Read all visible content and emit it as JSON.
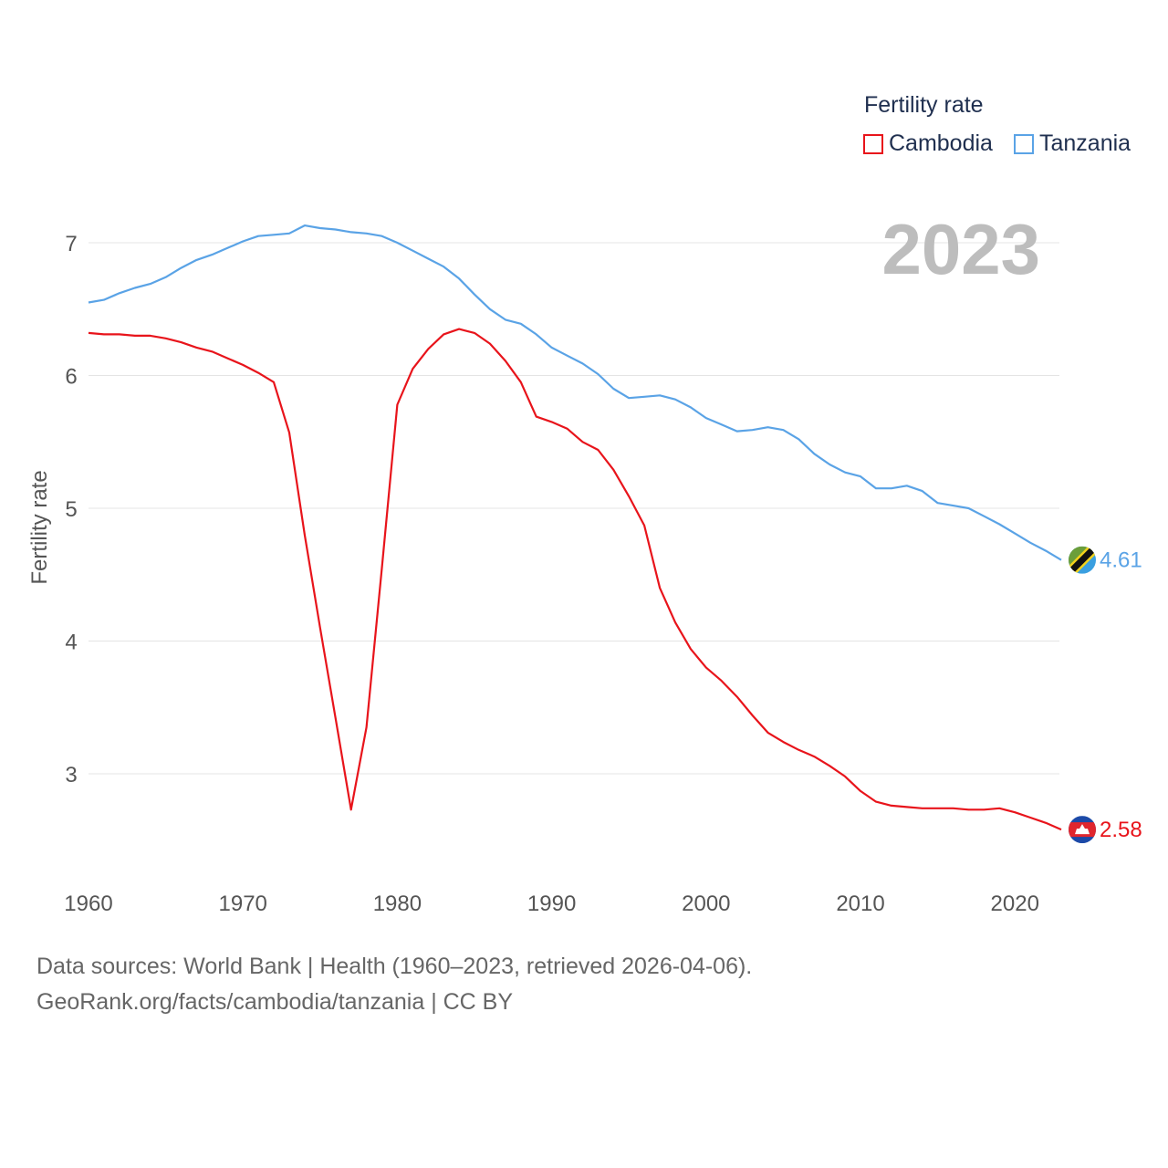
{
  "legend": {
    "title": "Fertility rate",
    "items": [
      {
        "label": "Cambodia",
        "color": "#e8141b"
      },
      {
        "label": "Tanzania",
        "color": "#5aa3e6"
      }
    ]
  },
  "footer": {
    "line1": "Data sources: World Bank | Health (1960–2023, retrieved 2026-04-06).",
    "line2": "GeoRank.org/facts/cambodia/tanzania | CC BY"
  },
  "chart_data": {
    "type": "line",
    "title": "Fertility rate",
    "year_label": "2023",
    "xlabel": "",
    "ylabel": "Fertility rate",
    "xlim": [
      1960,
      2023
    ],
    "ylim": [
      2.4,
      7.4
    ],
    "x_ticks": [
      1960,
      1970,
      1980,
      1990,
      2000,
      2010,
      2020
    ],
    "y_ticks": [
      3,
      4,
      5,
      6,
      7
    ],
    "grid": true,
    "legend_position": "top-right",
    "x": [
      1960,
      1961,
      1962,
      1963,
      1964,
      1965,
      1966,
      1967,
      1968,
      1969,
      1970,
      1971,
      1972,
      1973,
      1974,
      1975,
      1976,
      1977,
      1978,
      1979,
      1980,
      1981,
      1982,
      1983,
      1984,
      1985,
      1986,
      1987,
      1988,
      1989,
      1990,
      1991,
      1992,
      1993,
      1994,
      1995,
      1996,
      1997,
      1998,
      1999,
      2000,
      2001,
      2002,
      2003,
      2004,
      2005,
      2006,
      2007,
      2008,
      2009,
      2010,
      2011,
      2012,
      2013,
      2014,
      2015,
      2016,
      2017,
      2018,
      2019,
      2020,
      2021,
      2022,
      2023
    ],
    "series": [
      {
        "name": "Cambodia",
        "color": "#e8141b",
        "end_label": "2.58",
        "values": [
          6.32,
          6.31,
          6.31,
          6.3,
          6.3,
          6.28,
          6.25,
          6.21,
          6.18,
          6.13,
          6.08,
          6.02,
          5.95,
          5.57,
          4.8,
          4.1,
          3.42,
          2.73,
          3.35,
          4.55,
          5.78,
          6.05,
          6.2,
          6.31,
          6.35,
          6.32,
          6.24,
          6.11,
          5.95,
          5.69,
          5.65,
          5.6,
          5.5,
          5.44,
          5.29,
          5.09,
          4.87,
          4.4,
          4.14,
          3.94,
          3.8,
          3.7,
          3.58,
          3.44,
          3.31,
          3.24,
          3.18,
          3.13,
          3.06,
          2.98,
          2.87,
          2.79,
          2.76,
          2.75,
          2.74,
          2.74,
          2.74,
          2.73,
          2.73,
          2.74,
          2.71,
          2.67,
          2.63,
          2.58
        ]
      },
      {
        "name": "Tanzania",
        "color": "#5aa3e6",
        "end_label": "4.61",
        "values": [
          6.55,
          6.57,
          6.62,
          6.66,
          6.69,
          6.74,
          6.81,
          6.87,
          6.91,
          6.96,
          7.01,
          7.05,
          7.06,
          7.07,
          7.13,
          7.11,
          7.1,
          7.08,
          7.07,
          7.05,
          7.0,
          6.94,
          6.88,
          6.82,
          6.73,
          6.61,
          6.5,
          6.42,
          6.39,
          6.31,
          6.21,
          6.15,
          6.09,
          6.01,
          5.9,
          5.83,
          5.84,
          5.85,
          5.82,
          5.76,
          5.68,
          5.63,
          5.58,
          5.59,
          5.61,
          5.59,
          5.52,
          5.41,
          5.33,
          5.27,
          5.24,
          5.15,
          5.15,
          5.17,
          5.13,
          5.04,
          5.02,
          5.0,
          4.94,
          4.88,
          4.81,
          4.74,
          4.68,
          4.61
        ]
      }
    ]
  }
}
